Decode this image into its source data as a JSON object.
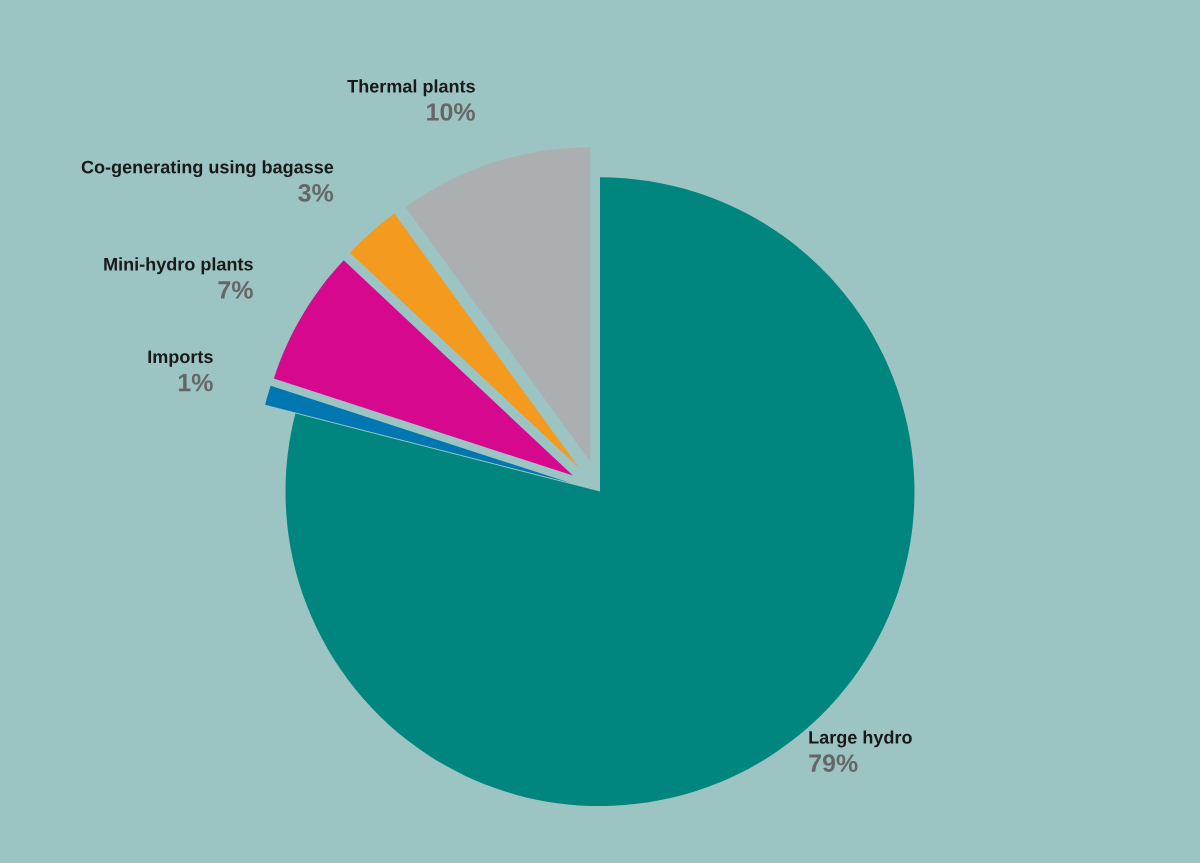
{
  "chart_data": {
    "type": "pie",
    "categories": [
      "Large hydro",
      "Imports",
      "Mini-hydro plants",
      "Co-generating using bagasse",
      "Thermal plants"
    ],
    "values": [
      79,
      1,
      7,
      3,
      10
    ],
    "colors": [
      "#00857f",
      "#0077b0",
      "#d6088e",
      "#f39a1f",
      "#acafb2"
    ],
    "value_labels": [
      "79%",
      "1%",
      "7%",
      "3%",
      "10%"
    ],
    "legend": false
  }
}
